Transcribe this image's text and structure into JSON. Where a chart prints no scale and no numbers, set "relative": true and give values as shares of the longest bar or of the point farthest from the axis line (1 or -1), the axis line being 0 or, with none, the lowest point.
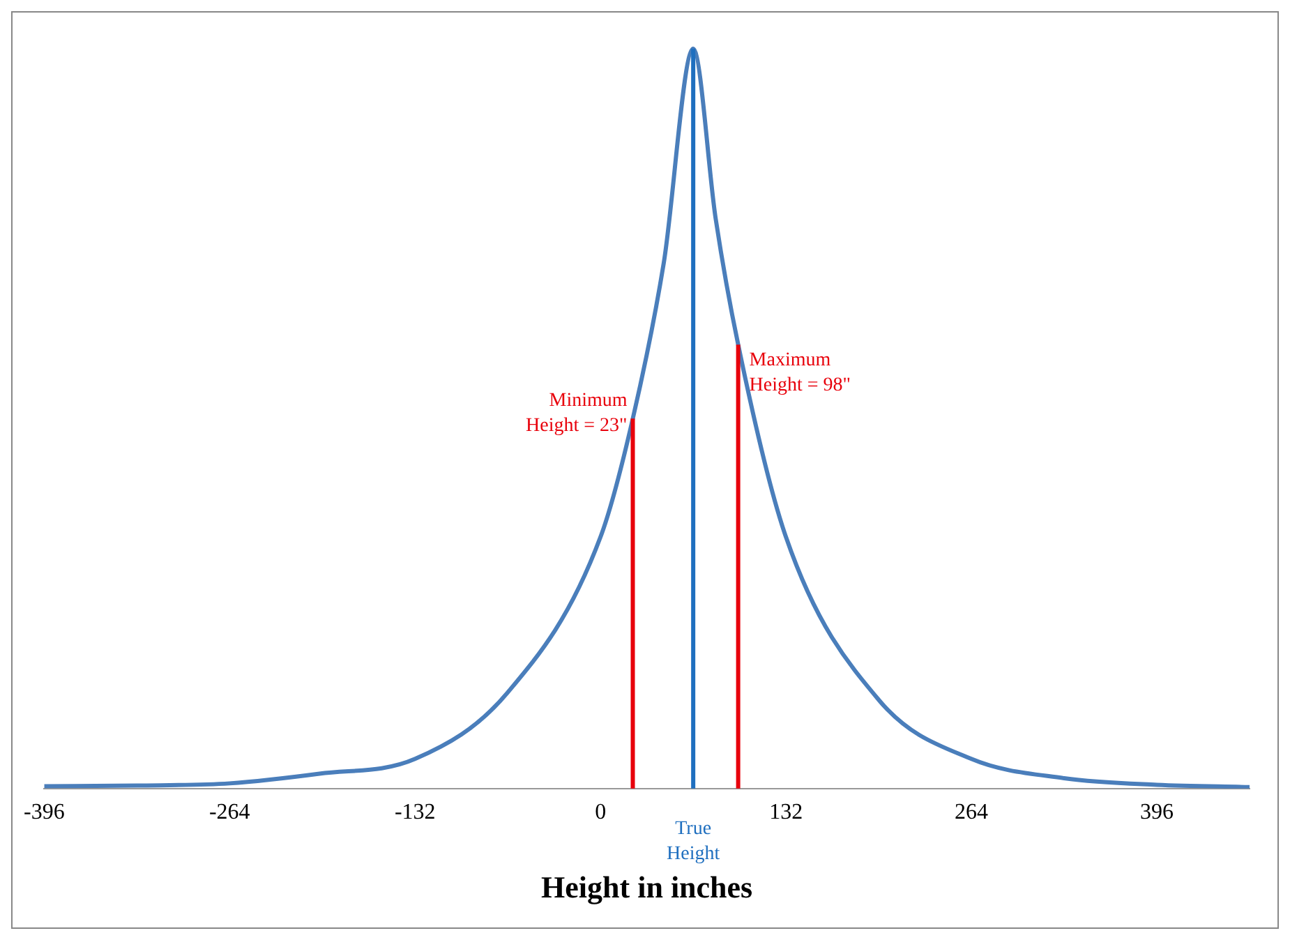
{
  "chart_data": {
    "type": "line",
    "xlabel": "Height in inches",
    "relative": true,
    "x": [
      -396,
      -330,
      -264,
      -200,
      -132,
      -66,
      0,
      23,
      45,
      66,
      82,
      98,
      132,
      198,
      264,
      330,
      396,
      462
    ],
    "series": [
      {
        "color": "#4a7ebb",
        "values": [
          0.003,
          0.004,
          0.007,
          0.02,
          0.04,
          0.13,
          0.34,
          0.5,
          0.71,
          1,
          0.77,
          0.6,
          0.34,
          0.12,
          0.04,
          0.014,
          0.005,
          0.002
        ]
      }
    ],
    "xlim": [
      -396,
      462
    ],
    "xticks": [
      -396,
      -264,
      -132,
      0,
      132,
      264,
      396
    ],
    "ref_lines": [
      {
        "axis": "x",
        "value": 23,
        "label": "Minimum\nHeight = 23\"",
        "color": "#e8000b"
      },
      {
        "axis": "x",
        "value": 66,
        "label": "True\nHeight",
        "color": "#1f6fbf"
      },
      {
        "axis": "x",
        "value": 98,
        "label": "Maximum\nHeight = 98\"",
        "color": "#e8000b"
      }
    ],
    "grid": false,
    "legend": false,
    "marker": "none",
    "line_style": "solid"
  }
}
